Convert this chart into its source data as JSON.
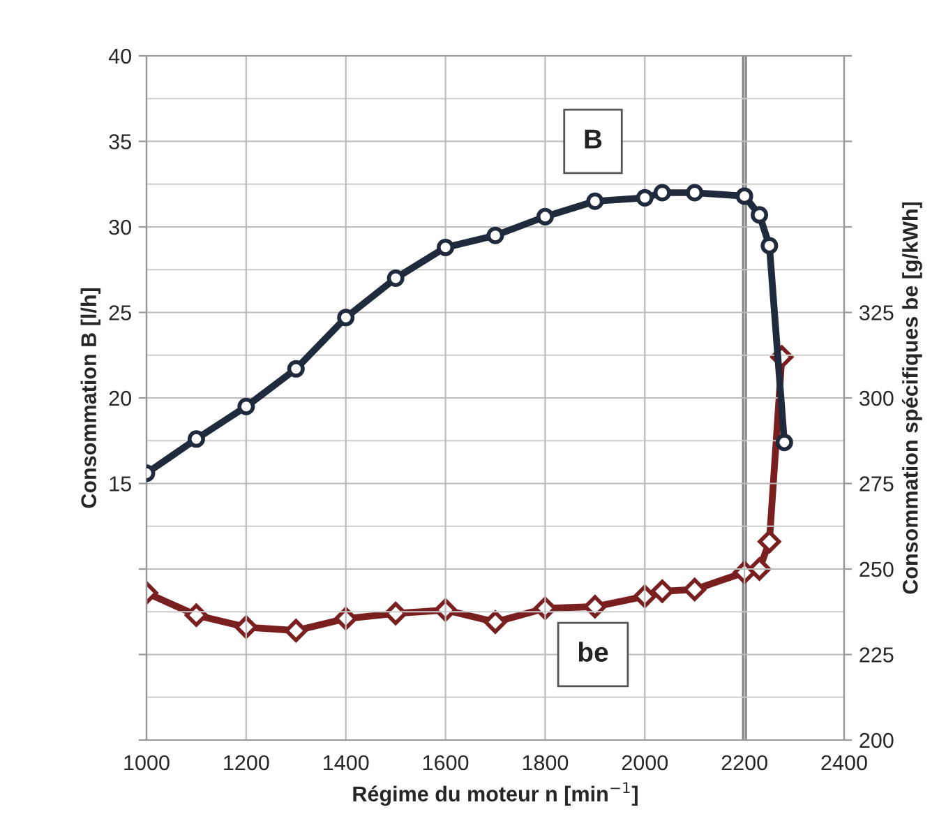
{
  "chart_data": {
    "type": "line",
    "xlabel": "Régime du moteur n [min$^{−1}$]",
    "ylabel": "Consommation B [l/h]",
    "y2label": "Consommation spécifiques be [g/kWh]",
    "xlim": [
      1000,
      2400
    ],
    "xticks": [
      1000,
      1200,
      1400,
      1600,
      1800,
      2000,
      2200,
      2400
    ],
    "ylim": [
      0,
      40
    ],
    "yticks": [
      {
        "value": 0,
        "label": null
      },
      {
        "value": 5,
        "label": null
      },
      {
        "value": 10,
        "label": null
      },
      15,
      20,
      25,
      30,
      35,
      40
    ],
    "y2lim": [
      200,
      400
    ],
    "y2ticks": [
      200,
      225,
      250,
      275,
      300,
      325,
      {
        "value": 350,
        "label": null
      },
      {
        "value": 375,
        "label": null
      },
      {
        "value": 400,
        "label": null
      }
    ],
    "grid": true,
    "line_style": "solid",
    "series": [
      {
        "name": "B",
        "color": "#1f2a3c",
        "marker": "circle",
        "x": [
          1000,
          1100,
          1200,
          1300,
          1400,
          1500,
          1600,
          1700,
          1800,
          1900,
          2000,
          2035,
          2100,
          2200,
          2230,
          2250,
          2280
        ],
        "values": [
          15.6,
          17.6,
          19.5,
          21.7,
          24.7,
          27.0,
          28.8,
          29.5,
          30.6,
          31.5,
          31.7,
          32.0,
          32.0,
          31.8,
          30.7,
          28.9,
          17.4
        ]
      },
      {
        "name": "be",
        "color": "#7a1f1f",
        "marker": "diamond",
        "axis": "y2",
        "x": [
          1000,
          1100,
          1200,
          1300,
          1400,
          1500,
          1600,
          1700,
          1800,
          1900,
          2000,
          2035,
          2100,
          2200,
          2230,
          2250,
          2275
        ],
        "values": [
          243,
          236.5,
          233,
          232,
          235.5,
          237,
          238,
          234.5,
          238.5,
          239,
          242,
          243.5,
          244,
          249,
          250,
          258,
          312
        ]
      }
    ],
    "ref_lines": [
      {
        "axis": "x",
        "value": 2200,
        "color": "#808080"
      }
    ]
  }
}
